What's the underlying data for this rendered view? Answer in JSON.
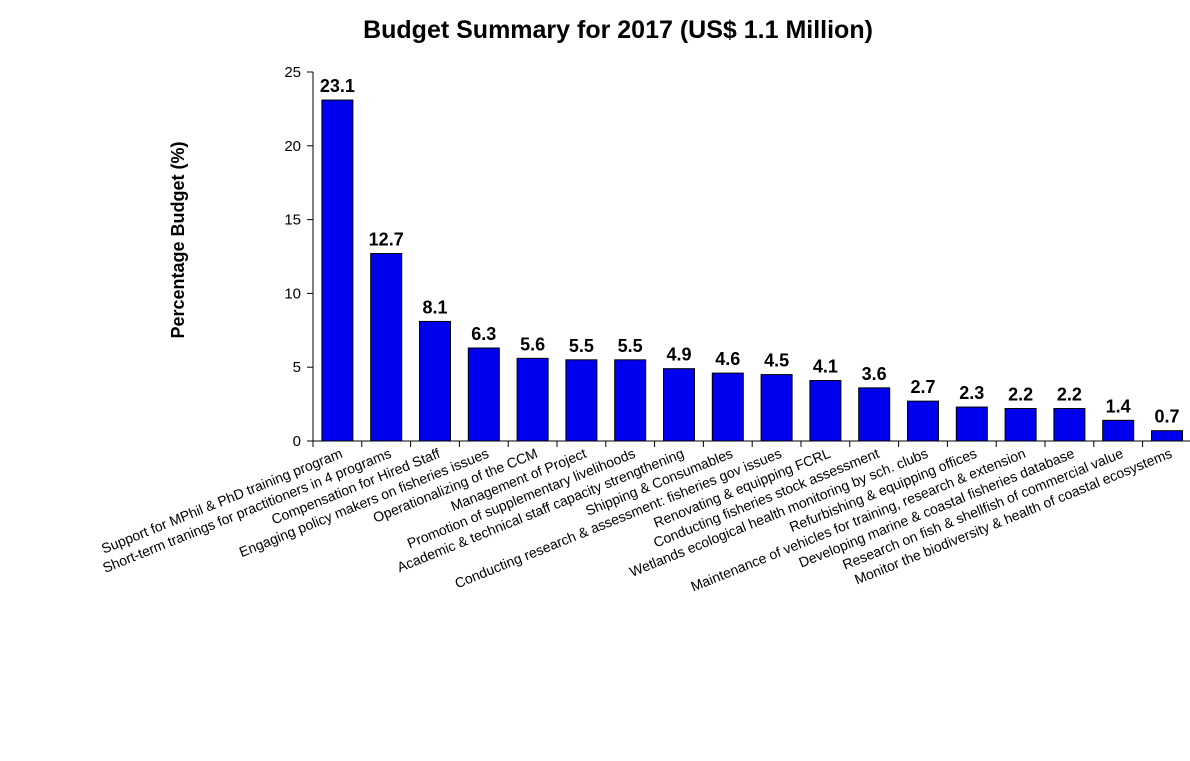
{
  "chart_data": {
    "type": "bar",
    "title": "Budget Summary for 2017 (US$ 1.1 Million)",
    "xlabel": "",
    "ylabel": "Percentage Budget (%)",
    "ylim": [
      0,
      25
    ],
    "yticks": [
      "0",
      "5",
      "10",
      "15",
      "20",
      "25"
    ],
    "grid": false,
    "legend": "none",
    "bar_color": "#0000ee",
    "categories": [
      "Support for MPhil & PhD training program",
      "Short-term tranings for practitioners in 4 programs",
      "Compensation for Hired  Staff",
      "Engaging policy makers on fisheries issues",
      "Operationalizing of the CCM",
      "Management of Project",
      "Promotion of supplementary  livelihoods",
      "Academic & technical staff capacity strengthening",
      "Shipping & Consumables",
      "Conducting research & assessment: fisheries gov issues",
      "Renovating & equipping FCRL",
      "Conducting fisheries stock assessment",
      "Wetlands ecological health monitoring by sch. clubs",
      "Refurbishing & equipping offices",
      "Maintenance of vehicles for training, research & extension",
      "Developing marine & coastal fisheries database",
      "Research on fish & shellfish of commercial value",
      "Monitor the biodiversity & health of coastal ecosystems"
    ],
    "values": [
      23.1,
      12.7,
      8.1,
      6.3,
      5.6,
      5.5,
      5.5,
      4.9,
      4.6,
      4.5,
      4.1,
      3.6,
      2.7,
      2.3,
      2.2,
      2.2,
      1.4,
      0.7
    ],
    "data_labels": [
      "23.1",
      "12.7",
      "8.1",
      "6.3",
      "5.6",
      "5.5",
      "5.5",
      "4.9",
      "4.6",
      "4.5",
      "4.1",
      "3.6",
      "2.7",
      "2.3",
      "2.2",
      "2.2",
      "1.4",
      "0.7"
    ]
  }
}
